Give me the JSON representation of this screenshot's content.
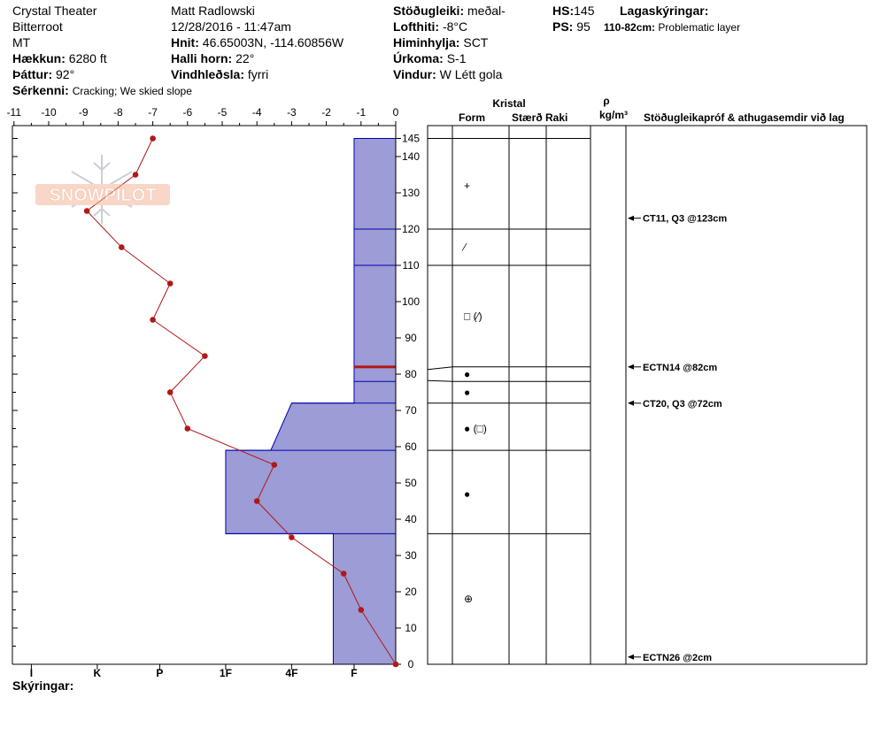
{
  "header": {
    "site": "Crystal Theater",
    "range": "Bitterroot",
    "state": "MT",
    "elevation_label": "Hækkun:",
    "elevation_value": "6280 ft",
    "aspect_label": "Þáttur:",
    "aspect_value": "92°",
    "features_label": "Sérkenni:",
    "features_value": "Cracking;  We skied slope",
    "observer": "Matt Radlowski",
    "datetime": "12/28/2016 - 11:47am",
    "coords_label": "Hnit:",
    "coords_value": "46.65003N, -114.60856W",
    "slope_label": "Halli horn:",
    "slope_value": "22°",
    "wind_loading_label": "Vindhleðsla:",
    "wind_loading_value": "fyrri",
    "stability_label": "Stöðugleiki:",
    "stability_value": "meðal-",
    "air_temp_label": "Lofthiti:",
    "air_temp_value": "-8°C",
    "sky_label": "Himinhylja:",
    "sky_value": "SCT",
    "precip_label": "Úrkoma:",
    "precip_value": "S-1",
    "wind_label": "Vindur:",
    "wind_value": "W Létt gola",
    "hs_label": "HS:",
    "hs_value": "145",
    "ps_label": "PS:",
    "ps_value": "95",
    "layer_notes_label": "Lagaskýringar:",
    "layer_note_range": "110-82cm:",
    "layer_note_text": "Problematic layer"
  },
  "footer": {
    "notes_label": "Skýringar:"
  },
  "watermark": "SNOWPILOT",
  "colors": {
    "hardness_fill": "#9c9cd6",
    "hardness_edge": "#0000b0",
    "temp_line": "#b01818",
    "weak_layer": "#b01818"
  },
  "columns": {
    "crystal": "Kristal",
    "form": "Form",
    "size": "Stærð",
    "moisture": "Raki",
    "rho": "ρ",
    "density_unit": "kg/m³",
    "tests_header": "Stöðugleikapróf & athugasemdir við lag"
  },
  "chart_data": {
    "type": "snow_profile",
    "temperature_axis": {
      "ticks": [
        -11,
        -10,
        -9,
        -8,
        -7,
        -6,
        -5,
        -4,
        -3,
        -2,
        -1,
        0
      ],
      "range": [
        -11,
        0
      ]
    },
    "height_axis": {
      "ticks": [
        0,
        10,
        20,
        30,
        40,
        50,
        60,
        70,
        80,
        90,
        100,
        110,
        120,
        130,
        140,
        145
      ],
      "range": [
        0,
        145
      ]
    },
    "hardness_axis": {
      "labels": [
        "I",
        "K",
        "P",
        "1F",
        "4F",
        "F"
      ],
      "label_temp_positions": [
        -10.5,
        -8.6,
        -6.8,
        -4.9,
        -3.0,
        -1.2
      ]
    },
    "temperature_profile": [
      {
        "height": 145,
        "temp": -7.0
      },
      {
        "height": 135,
        "temp": -7.5
      },
      {
        "height": 125,
        "temp": -8.9
      },
      {
        "height": 115,
        "temp": -7.9
      },
      {
        "height": 105,
        "temp": -6.5
      },
      {
        "height": 95,
        "temp": -7.0
      },
      {
        "height": 85,
        "temp": -5.5
      },
      {
        "height": 75,
        "temp": -6.5
      },
      {
        "height": 65,
        "temp": -6.0
      },
      {
        "height": 55,
        "temp": -3.5
      },
      {
        "height": 45,
        "temp": -4.0
      },
      {
        "height": 35,
        "temp": -3.0
      },
      {
        "height": 25,
        "temp": -1.5
      },
      {
        "height": 15,
        "temp": -1.0
      },
      {
        "height": 0,
        "temp": 0.0
      }
    ],
    "hardness_profile": [
      [
        145,
        -1.2
      ],
      [
        82,
        -1.2
      ],
      [
        72,
        -1.2
      ],
      [
        72,
        -3.0
      ],
      [
        59,
        -3.6
      ],
      [
        59,
        -4.9
      ],
      [
        36,
        -4.9
      ],
      [
        36,
        -1.8
      ],
      [
        0,
        -1.8
      ]
    ],
    "layer_boundaries": [
      145,
      120,
      110,
      82,
      78,
      72,
      59,
      36,
      0
    ],
    "weak_layer_height": 82,
    "crystal_forms": [
      {
        "height": 132,
        "symbol": "+"
      },
      {
        "height": 115,
        "symbol": "⁄"
      },
      {
        "height": 96,
        "symbol": "□ (⁄)"
      },
      {
        "height": 80,
        "symbol": "●"
      },
      {
        "height": 75,
        "symbol": "●"
      },
      {
        "height": 65,
        "symbol": "● (□)"
      },
      {
        "height": 47,
        "symbol": "●"
      },
      {
        "height": 18,
        "symbol": "⊕"
      }
    ],
    "tests": [
      {
        "height": 123,
        "text": "CT11, Q3 @123cm"
      },
      {
        "height": 82,
        "text": "ECTN14 @82cm"
      },
      {
        "height": 72,
        "text": "CT20, Q3 @72cm"
      },
      {
        "height": 2,
        "text": "ECTN26 @2cm"
      }
    ]
  }
}
